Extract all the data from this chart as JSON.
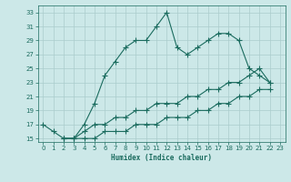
{
  "xlabel": "Humidex (Indice chaleur)",
  "bg_color": "#cce8e8",
  "line_color": "#1a6b5e",
  "grid_color": "#aacccc",
  "xlim": [
    -0.5,
    23.5
  ],
  "ylim": [
    14.5,
    34
  ],
  "yticks": [
    15,
    17,
    19,
    21,
    23,
    25,
    27,
    29,
    31,
    33
  ],
  "xticks": [
    0,
    1,
    2,
    3,
    4,
    5,
    6,
    7,
    8,
    9,
    10,
    11,
    12,
    13,
    14,
    15,
    16,
    17,
    18,
    19,
    20,
    21,
    22,
    23
  ],
  "line1_x": [
    0,
    1,
    2,
    3,
    4,
    5,
    6,
    7,
    8,
    9,
    10,
    11,
    12,
    13,
    14,
    15,
    16,
    17,
    18,
    19,
    20,
    21,
    22
  ],
  "line1_y": [
    17,
    16,
    15,
    15,
    17,
    20,
    24,
    26,
    28,
    29,
    29,
    31,
    33,
    28,
    27,
    28,
    29,
    30,
    30,
    29,
    25,
    24,
    23
  ],
  "line2_x": [
    2,
    3,
    4,
    5,
    6,
    7,
    8,
    9,
    10,
    11,
    12,
    13,
    14,
    15,
    16,
    17,
    18,
    19,
    20,
    21,
    22
  ],
  "line2_y": [
    15,
    15,
    16,
    17,
    17,
    18,
    18,
    19,
    19,
    20,
    20,
    20,
    21,
    21,
    22,
    22,
    23,
    23,
    24,
    25,
    23
  ],
  "line3_x": [
    2,
    3,
    4,
    5,
    6,
    7,
    8,
    9,
    10,
    11,
    12,
    13,
    14,
    15,
    16,
    17,
    18,
    19,
    20,
    21,
    22
  ],
  "line3_y": [
    15,
    15,
    15,
    15,
    16,
    16,
    16,
    17,
    17,
    17,
    18,
    18,
    18,
    19,
    19,
    20,
    20,
    21,
    21,
    22,
    22
  ]
}
